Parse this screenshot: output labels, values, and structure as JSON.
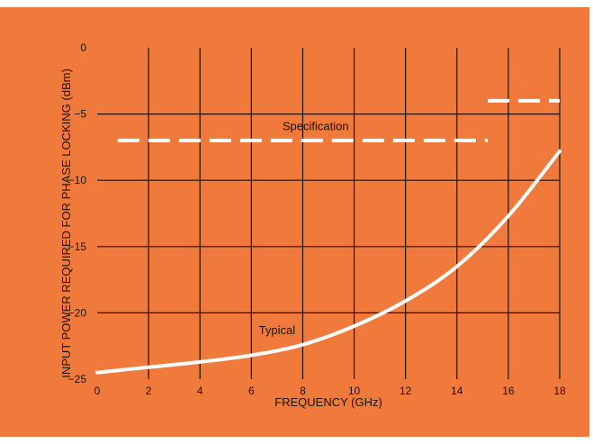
{
  "chart_data": {
    "type": "line",
    "xlabel": "FREQUENCY (GHz)",
    "ylabel": "INPUT POWER REQUIRED FOR PHASE LOCKING (dBm)",
    "xlim": [
      0,
      18
    ],
    "ylim": [
      -25,
      0
    ],
    "x_ticks": [
      "0",
      "2",
      "4",
      "6",
      "8",
      "10",
      "12",
      "14",
      "16",
      "18"
    ],
    "y_ticks": [
      "0",
      "-5",
      "-10",
      "-15",
      "-20",
      "-25"
    ],
    "grid": true,
    "series": [
      {
        "name": "Specification",
        "style": "dashed",
        "color": "#ffffff",
        "segments": [
          {
            "x": [
              0.8,
              15.2
            ],
            "y": [
              -7,
              -7
            ]
          },
          {
            "x": [
              15.2,
              18
            ],
            "y": [
              -4,
              -4
            ]
          }
        ]
      },
      {
        "name": "Typical",
        "style": "solid",
        "color": "#ffffff",
        "x": [
          0,
          2,
          4,
          6,
          8,
          10,
          12,
          14,
          16,
          18
        ],
        "y": [
          -24.5,
          -24.1,
          -23.7,
          -23.2,
          -22.4,
          -21.0,
          -19.1,
          -16.5,
          -12.7,
          -7.8
        ]
      }
    ],
    "annotations": [
      {
        "text": "Specification",
        "x": 8.5,
        "y": -6.2
      },
      {
        "text": "Typical",
        "x": 7.0,
        "y": -21.6
      }
    ]
  },
  "colors": {
    "background": "#f07a3c",
    "grid": "#1f120c",
    "lines": "#ffffff"
  }
}
